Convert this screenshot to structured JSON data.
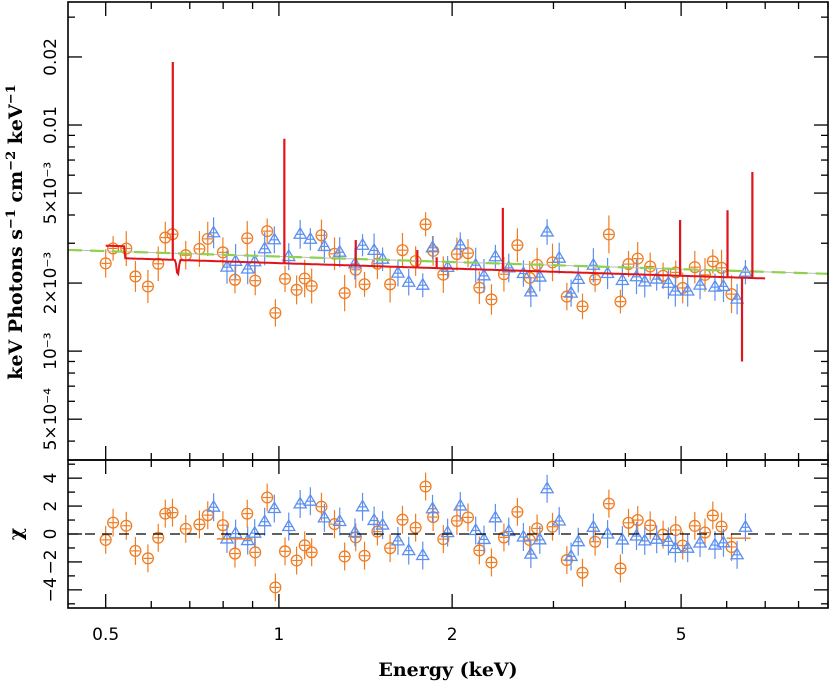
{
  "chart_data": [
    {
      "type": "scatter",
      "panel": "spectrum",
      "title": "",
      "xlabel": "Energy (keV)",
      "ylabel": "keV Photons s^-1 cm^-2 keV^-1",
      "xscale": "log",
      "yscale": "log",
      "xlim": [
        0.43,
        9.0
      ],
      "ylim": [
        0.00033,
        0.035
      ],
      "x_ticks": [
        0.5,
        1,
        2,
        5
      ],
      "y_ticks": [
        {
          "value": 0.0005,
          "label": "5×10⁻⁴"
        },
        {
          "value": 0.001,
          "label": "10⁻³"
        },
        {
          "value": 0.002,
          "label": "2×10⁻³"
        },
        {
          "value": 0.005,
          "label": "5×10⁻³"
        },
        {
          "value": 0.01,
          "label": "0.01"
        },
        {
          "value": 0.02,
          "label": "0.02"
        }
      ],
      "series": [
        {
          "marker": "circle",
          "color": "#f07c22",
          "gen": {
            "seed": 11,
            "start": 0.5,
            "end": 6.3,
            "step": 0.0195,
            "scatter": 0.16,
            "err": 0.15,
            "norm": 0.00245,
            "index": 1.08
          }
        },
        {
          "marker": "triangle",
          "color": "#5b8ff0",
          "gen": {
            "seed": 29,
            "start": 0.77,
            "end": 6.8,
            "step": 0.0195,
            "scatter": 0.16,
            "err": 0.14,
            "norm": 0.00245,
            "index": 1.08
          }
        }
      ],
      "models": [
        {
          "style": "power-law",
          "color": "#8fd14f",
          "dash": "14,8",
          "norm": 0.00262,
          "index": 1.08,
          "from": 0.43,
          "to": 9.0
        },
        {
          "style": "solid",
          "color": "#e0141b",
          "norm": 0.00245,
          "index": 1.08,
          "from": 0.5,
          "to": 7.0,
          "step": {
            "before": 0.54,
            "factor": 1.13
          },
          "edge": {
            "at": 0.667,
            "depth": 0.005
          },
          "lines": [
            {
              "e": 0.654,
              "peak": 0.019
            },
            {
              "e": 1.022,
              "peak": 0.0087
            },
            {
              "e": 1.36,
              "peak": 0.0031
            },
            {
              "e": 1.74,
              "peak": 0.0028
            },
            {
              "e": 1.88,
              "peak": 0.0026
            },
            {
              "e": 2.45,
              "peak": 0.0043
            },
            {
              "e": 4.98,
              "peak": 0.0038
            },
            {
              "e": 6.02,
              "peak": 0.0042
            },
            {
              "e": 6.38,
              "peak": 0.0009
            },
            {
              "e": 6.65,
              "peak": 0.0062
            }
          ]
        }
      ]
    },
    {
      "type": "scatter",
      "panel": "residuals",
      "xlabel": "Energy (keV)",
      "ylabel": "χ",
      "xscale": "log",
      "ylim": [
        -5.3,
        5.3
      ],
      "y_ticks": [
        {
          "value": -4,
          "label": "−4"
        },
        {
          "value": -2,
          "label": "−2"
        },
        {
          "value": 0,
          "label": "0"
        },
        {
          "value": 2,
          "label": "2"
        },
        {
          "value": 4,
          "label": "4"
        }
      ],
      "reference_line": {
        "value": 0,
        "dash": "10,7",
        "color": "#000000"
      }
    }
  ]
}
